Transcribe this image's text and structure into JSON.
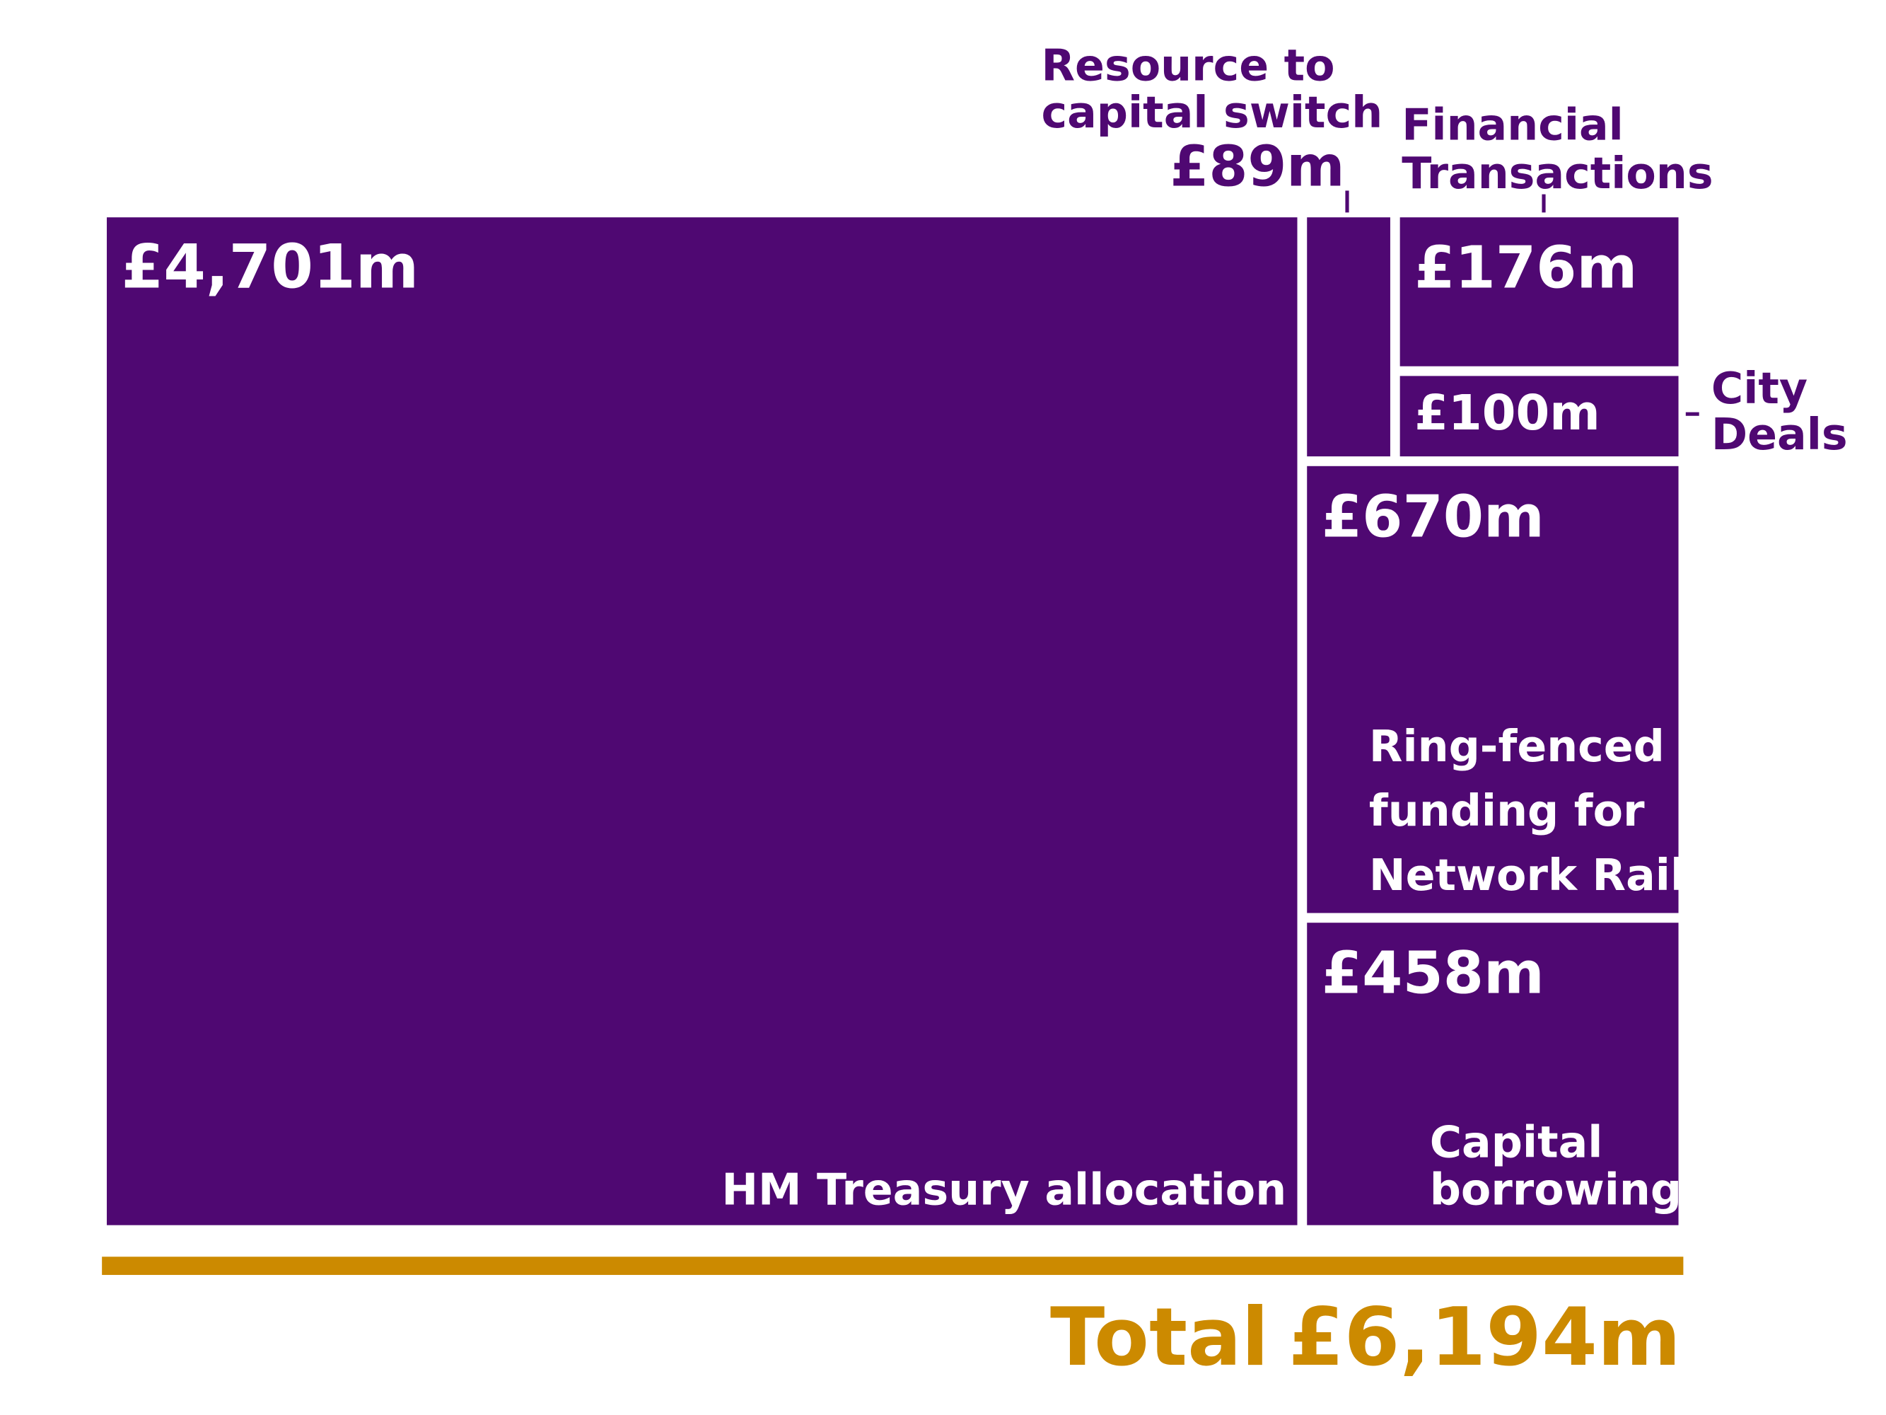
{
  "chart_data": {
    "type": "treemap",
    "color": "#4f0872",
    "total_color": "#cc8a00",
    "items": [
      {
        "name": [
          "HM Treasury allocation"
        ],
        "value": 4701,
        "value_label": "£4,701m"
      },
      {
        "name": [
          "Resource to",
          "capital switch"
        ],
        "value": 89,
        "value_label": "£89m"
      },
      {
        "name": [
          "Financial",
          "Transactions"
        ],
        "value": 176,
        "value_label": "£176m"
      },
      {
        "name": [
          "City",
          "Deals"
        ],
        "value": 100,
        "value_label": "£100m"
      },
      {
        "name": [
          "Ring-fenced",
          "funding for",
          "Network Rail"
        ],
        "value": 670,
        "value_label": "£670m"
      },
      {
        "name": [
          "Capital",
          "borrowing"
        ],
        "value": 458,
        "value_label": "£458m"
      }
    ],
    "total_title": "Total",
    "total": 6194,
    "total_label": "£6,194m"
  }
}
